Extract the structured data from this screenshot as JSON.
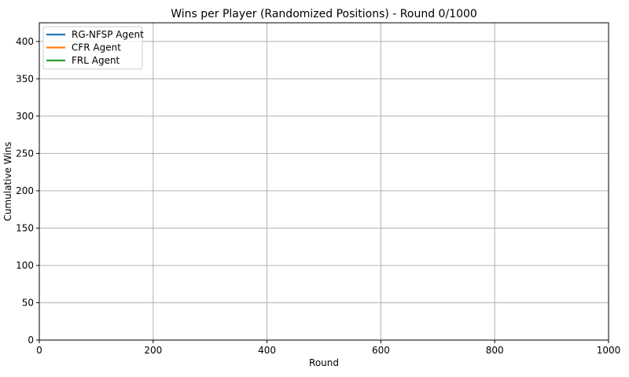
{
  "chart_data": {
    "type": "line",
    "title": "Wins per Player (Randomized Positions) - Round 0/1000",
    "xlabel": "Round",
    "ylabel": "Cumulative Wins",
    "xlim": [
      0,
      1000
    ],
    "ylim": [
      0,
      425
    ],
    "xticks": [
      0,
      200,
      400,
      600,
      800,
      1000
    ],
    "yticks": [
      0,
      50,
      100,
      150,
      200,
      250,
      300,
      350,
      400
    ],
    "grid": true,
    "legend_position": "top-left",
    "series": [
      {
        "name": "RG-NFSP Agent",
        "color": "#1f77b4",
        "x": [],
        "y": []
      },
      {
        "name": "CFR Agent",
        "color": "#ff7f0e",
        "x": [],
        "y": []
      },
      {
        "name": "FRL Agent",
        "color": "#2ca02c",
        "x": [],
        "y": []
      }
    ]
  }
}
